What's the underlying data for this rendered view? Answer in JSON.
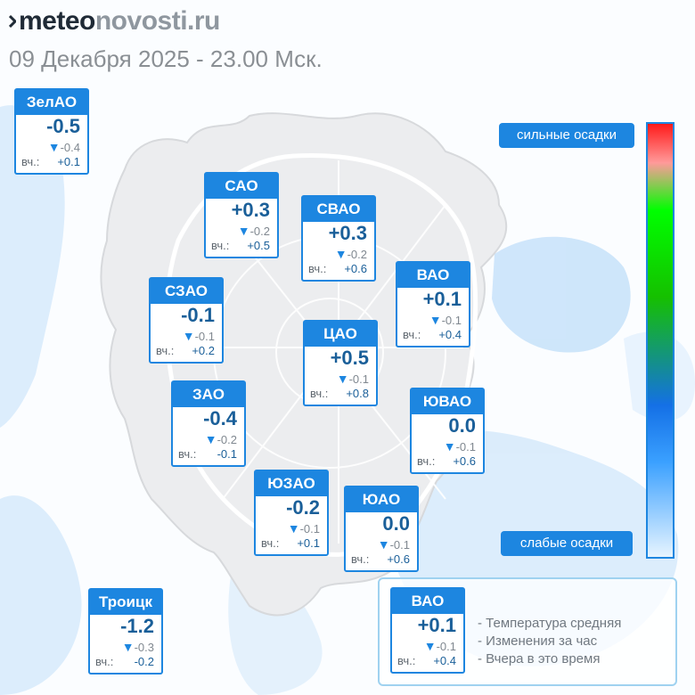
{
  "header": {
    "logo_part1": "meteo",
    "logo_part2": "novosti.ru",
    "datetime": "09 Декабря 2025 - 23.00 Мск."
  },
  "labels": {
    "yesterday_prefix": "вч.:",
    "change_arrow": "▼"
  },
  "districts": [
    {
      "name": "ЗелАО",
      "temp": "-0.5",
      "change": "-0.4",
      "yesterday": "+0.1"
    },
    {
      "name": "САО",
      "temp": "+0.3",
      "change": "-0.2",
      "yesterday": "+0.5"
    },
    {
      "name": "СВАО",
      "temp": "+0.3",
      "change": "-0.2",
      "yesterday": "+0.6"
    },
    {
      "name": "СЗАО",
      "temp": "-0.1",
      "change": "-0.1",
      "yesterday": "+0.2"
    },
    {
      "name": "ВАО",
      "temp": "+0.1",
      "change": "-0.1",
      "yesterday": "+0.4"
    },
    {
      "name": "ЦАО",
      "temp": "+0.5",
      "change": "-0.1",
      "yesterday": "+0.8"
    },
    {
      "name": "ЗАО",
      "temp": "-0.4",
      "change": "-0.2",
      "yesterday": "-0.1"
    },
    {
      "name": "ЮВАО",
      "temp": "0.0",
      "change": "-0.1",
      "yesterday": "+0.6"
    },
    {
      "name": "ЮЗАО",
      "temp": "-0.2",
      "change": "-0.1",
      "yesterday": "+0.1"
    },
    {
      "name": "ЮАО",
      "temp": "0.0",
      "change": "-0.1",
      "yesterday": "+0.6"
    },
    {
      "name": "Троицк",
      "temp": "-1.2",
      "change": "-0.3",
      "yesterday": "-0.2"
    }
  ],
  "precip_scale": {
    "top_label": "сильные осадки",
    "bottom_label": "слабые осадки",
    "colors": [
      "#ff1a1a",
      "#ff9a9a",
      "#00ff00",
      "#15c000",
      "#1470e6",
      "#3aa0ff",
      "#e6f4ff"
    ]
  },
  "legend": {
    "example": {
      "name": "ВАО",
      "temp": "+0.1",
      "change": "-0.1",
      "yesterday": "+0.4"
    },
    "lines": [
      "- Температура средняя",
      "- Изменения за час",
      "- Вчера в это время"
    ]
  },
  "colors": {
    "accent": "#1d86e0",
    "value_text": "#1a5f99",
    "precip_light": "#cfe6fa"
  }
}
